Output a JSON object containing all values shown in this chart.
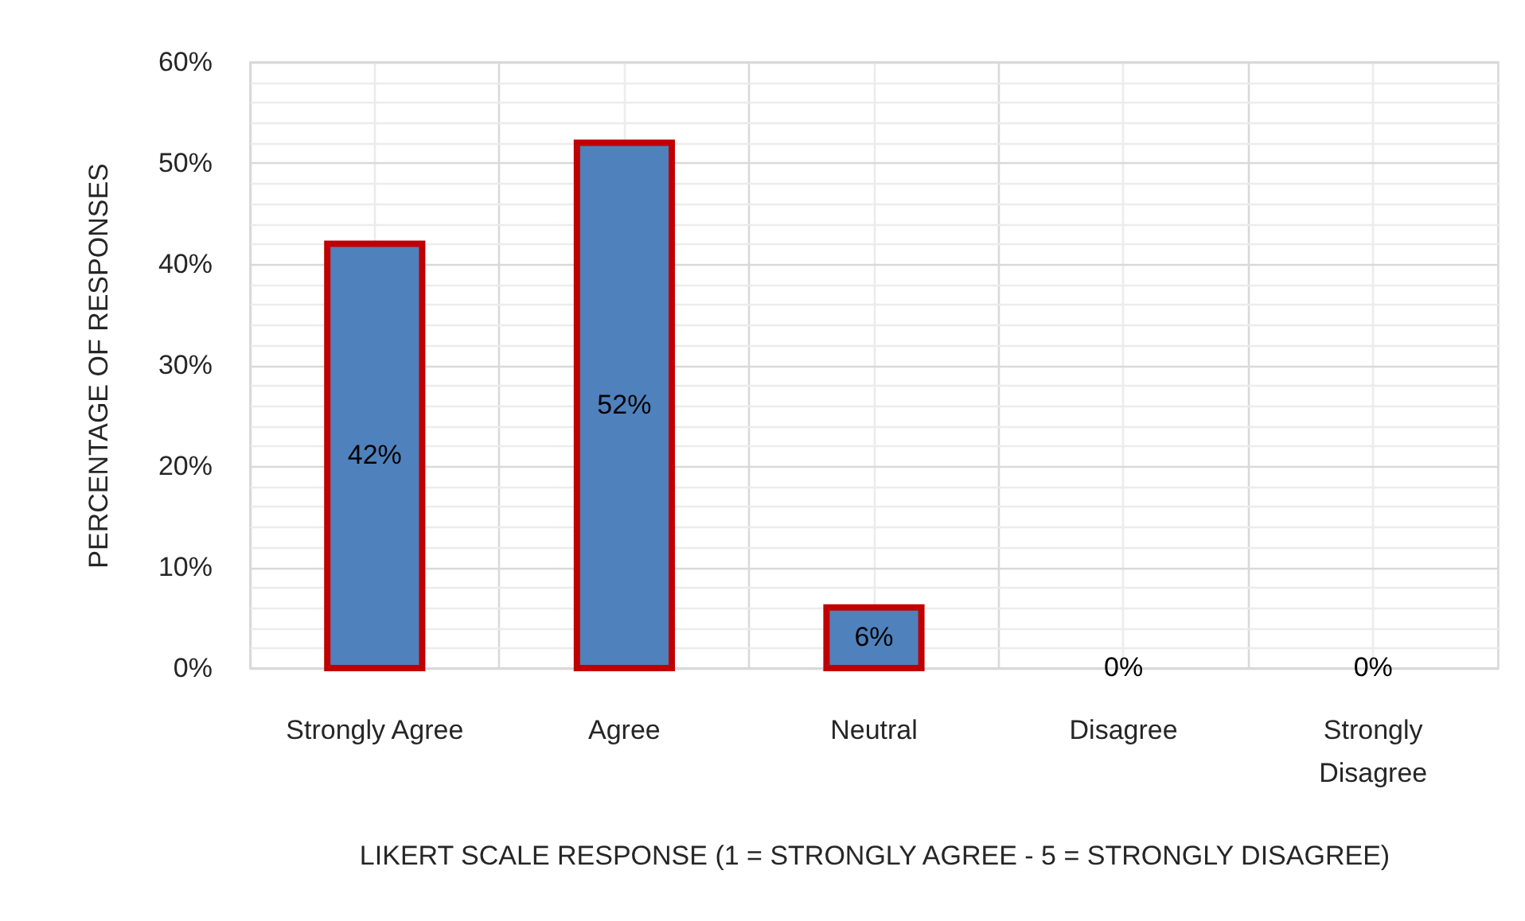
{
  "chart_data": {
    "type": "bar",
    "categories": [
      "Strongly Agree",
      "Agree",
      "Neutral",
      "Disagree",
      "Strongly Disagree"
    ],
    "values": [
      42,
      52,
      6,
      0,
      0
    ],
    "color": "#4f81bd",
    "value_labels": [
      "42%",
      "52%",
      "6%",
      "0%",
      "0%"
    ],
    "xlabel": "LIKERT SCALE RESPONSE (1 = STRONGLY AGREE - 5 = STRONGLY DISAGREE)",
    "ylabel": "PERCENTAGE OF RESPONSES",
    "ylim": [
      0,
      60
    ],
    "yticks": [
      {
        "value": 0,
        "label": "0%"
      },
      {
        "value": 2,
        "label": null
      },
      {
        "value": 4,
        "label": null
      },
      {
        "value": 6,
        "label": null
      },
      {
        "value": 8,
        "label": null
      },
      {
        "value": 10,
        "label": "10%"
      },
      {
        "value": 12,
        "label": null
      },
      {
        "value": 14,
        "label": null
      },
      {
        "value": 16,
        "label": null
      },
      {
        "value": 18,
        "label": null
      },
      {
        "value": 20,
        "label": "20%"
      },
      {
        "value": 22,
        "label": null
      },
      {
        "value": 24,
        "label": null
      },
      {
        "value": 26,
        "label": null
      },
      {
        "value": 28,
        "label": null
      },
      {
        "value": 30,
        "label": "30%"
      },
      {
        "value": 32,
        "label": null
      },
      {
        "value": 34,
        "label": null
      },
      {
        "value": 36,
        "label": null
      },
      {
        "value": 38,
        "label": null
      },
      {
        "value": 40,
        "label": "40%"
      },
      {
        "value": 42,
        "label": null
      },
      {
        "value": 44,
        "label": null
      },
      {
        "value": 46,
        "label": null
      },
      {
        "value": 48,
        "label": null
      },
      {
        "value": 50,
        "label": "50%"
      },
      {
        "value": 52,
        "label": null
      },
      {
        "value": 54,
        "label": null
      },
      {
        "value": 56,
        "label": null
      },
      {
        "value": 58,
        "label": null
      },
      {
        "value": 60,
        "label": "60%"
      }
    ],
    "grid": true
  }
}
